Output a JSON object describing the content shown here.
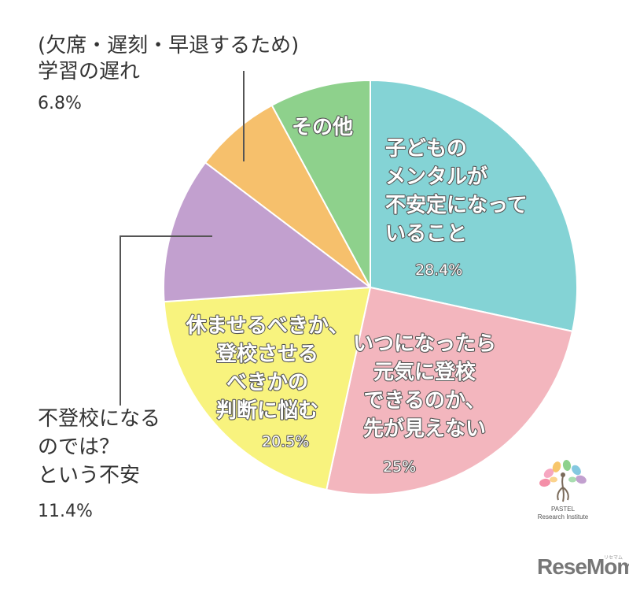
{
  "chart_data": {
    "type": "pie",
    "slices": [
      {
        "label_lines": [
          "子どもの",
          "メンタルが",
          "不安定になって",
          "いること"
        ],
        "percent_label": "28.4%",
        "value": 28.4,
        "color": "#84D3D5"
      },
      {
        "label_lines": [
          "いつになったら",
          "元気に登校",
          "できるのか、",
          "先が見えない"
        ],
        "percent_label": "25%",
        "value": 25,
        "color": "#F3B6BE"
      },
      {
        "label_lines": [
          "休ませるべきか、",
          "登校させる",
          "べきかの",
          "判断に悩む"
        ],
        "percent_label": "20.5%",
        "value": 20.5,
        "color": "#F8F37E"
      },
      {
        "label_lines": [
          "不登校になる",
          "のでは？",
          "という不安"
        ],
        "percent_label": "11.4%",
        "value": 11.4,
        "color": "#C2A0CF"
      },
      {
        "label_lines": [
          "(欠席・遅刻・早退するため)",
          "学習の遅れ"
        ],
        "percent_label": "6.8%",
        "value": 6.8,
        "color": "#F6C06C"
      },
      {
        "label_lines": [
          "その他"
        ],
        "percent_label": "",
        "value": 7.9,
        "color": "#8ED18C"
      }
    ]
  },
  "logo": {
    "line1": "PASTEL",
    "line2": "Research Institute"
  },
  "brand": {
    "name": "ReseMom",
    "tag": "リセマム"
  }
}
